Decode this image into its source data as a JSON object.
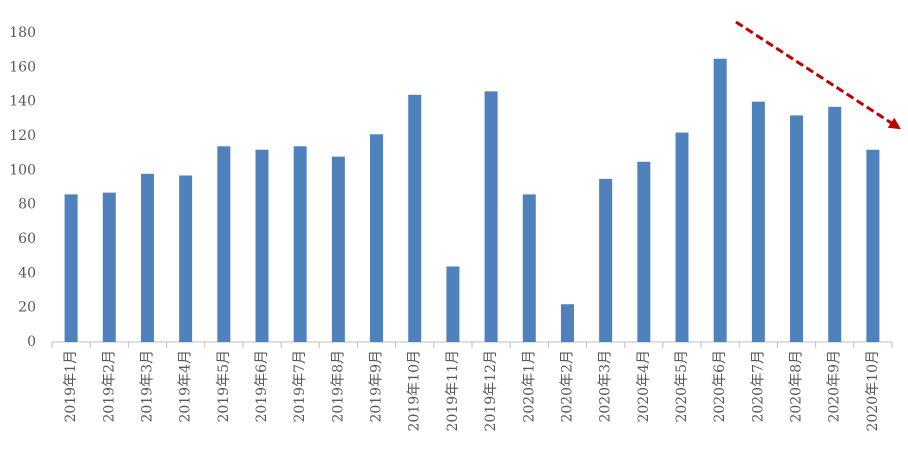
{
  "chart_data": {
    "type": "bar",
    "categories": [
      "2019年1月",
      "2019年2月",
      "2019年3月",
      "2019年4月",
      "2019年5月",
      "2019年6月",
      "2019年7月",
      "2019年8月",
      "2019年9月",
      "2019年10月",
      "2019年11月",
      "2019年12月",
      "2020年1月",
      "2020年2月",
      "2020年3月",
      "2020年4月",
      "2020年5月",
      "2020年6月",
      "2020年7月",
      "2020年8月",
      "2020年9月",
      "2020年10月"
    ],
    "values": [
      86,
      87,
      98,
      97,
      114,
      112,
      114,
      108,
      121,
      144,
      44,
      146,
      86,
      22,
      95,
      105,
      122,
      165,
      140,
      132,
      137,
      112
    ],
    "color": "#4f81bd",
    "ylim": [
      0,
      180
    ],
    "yticks": [
      0,
      20,
      40,
      60,
      80,
      100,
      120,
      140,
      160,
      180
    ],
    "grid": false
  }
}
